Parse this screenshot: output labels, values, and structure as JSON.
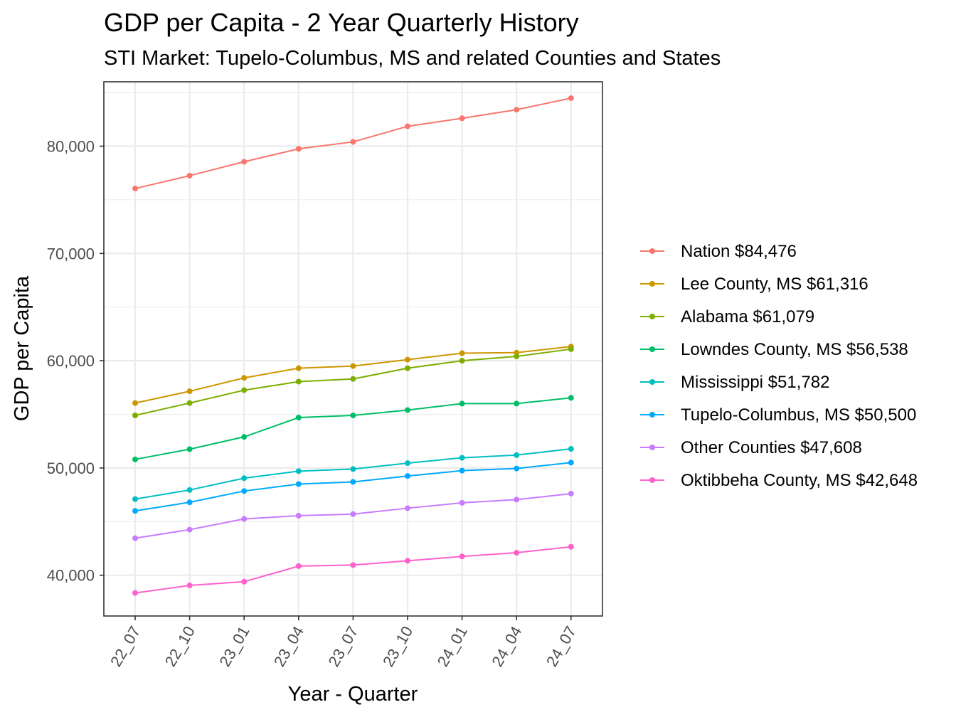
{
  "chart_data": {
    "type": "line",
    "title": "GDP per Capita - 2 Year Quarterly History",
    "subtitle": "STI Market: Tupelo-Columbus, MS and related Counties and States",
    "xlabel": "Year - Quarter",
    "ylabel": "GDP per Capita",
    "categories": [
      "22_07",
      "22_10",
      "23_01",
      "23_04",
      "23_07",
      "23_10",
      "24_01",
      "24_04",
      "24_07"
    ],
    "ylim": [
      36200,
      86000
    ],
    "yticks": [
      40000,
      50000,
      60000,
      70000,
      80000
    ],
    "ytick_labels": [
      "40,000",
      "50,000",
      "60,000",
      "70,000",
      "80,000"
    ],
    "grid": true,
    "legend_position": "right",
    "series": [
      {
        "name": "Nation $84,476",
        "color": "#F8766D",
        "values": [
          76050,
          77250,
          78550,
          79750,
          80400,
          81850,
          82600,
          83400,
          84476
        ]
      },
      {
        "name": "Lee County, MS $61,316",
        "color": "#CD9600",
        "values": [
          56050,
          57150,
          58400,
          59300,
          59500,
          60100,
          60700,
          60750,
          61316
        ]
      },
      {
        "name": "Alabama $61,079",
        "color": "#7CAE00",
        "values": [
          54900,
          56050,
          57250,
          58050,
          58300,
          59300,
          60000,
          60400,
          61079
        ]
      },
      {
        "name": "Lowndes County, MS $56,538",
        "color": "#00BE67",
        "values": [
          50800,
          51750,
          52900,
          54700,
          54900,
          55400,
          56000,
          56000,
          56538
        ]
      },
      {
        "name": "Mississippi $51,782",
        "color": "#00BFC4",
        "values": [
          47100,
          47950,
          49050,
          49700,
          49900,
          50450,
          50950,
          51200,
          51782
        ]
      },
      {
        "name": "Tupelo-Columbus, MS $50,500",
        "color": "#00A9FF",
        "values": [
          46000,
          46800,
          47850,
          48500,
          48700,
          49250,
          49750,
          49950,
          50500
        ]
      },
      {
        "name": "Other Counties $47,608",
        "color": "#C77CFF",
        "values": [
          43450,
          44250,
          45250,
          45550,
          45700,
          46250,
          46750,
          47050,
          47608
        ]
      },
      {
        "name": "Oktibbeha County, MS $42,648",
        "color": "#FF61CC",
        "values": [
          38350,
          39050,
          39400,
          40850,
          40950,
          41350,
          41750,
          42100,
          42648
        ]
      }
    ]
  }
}
